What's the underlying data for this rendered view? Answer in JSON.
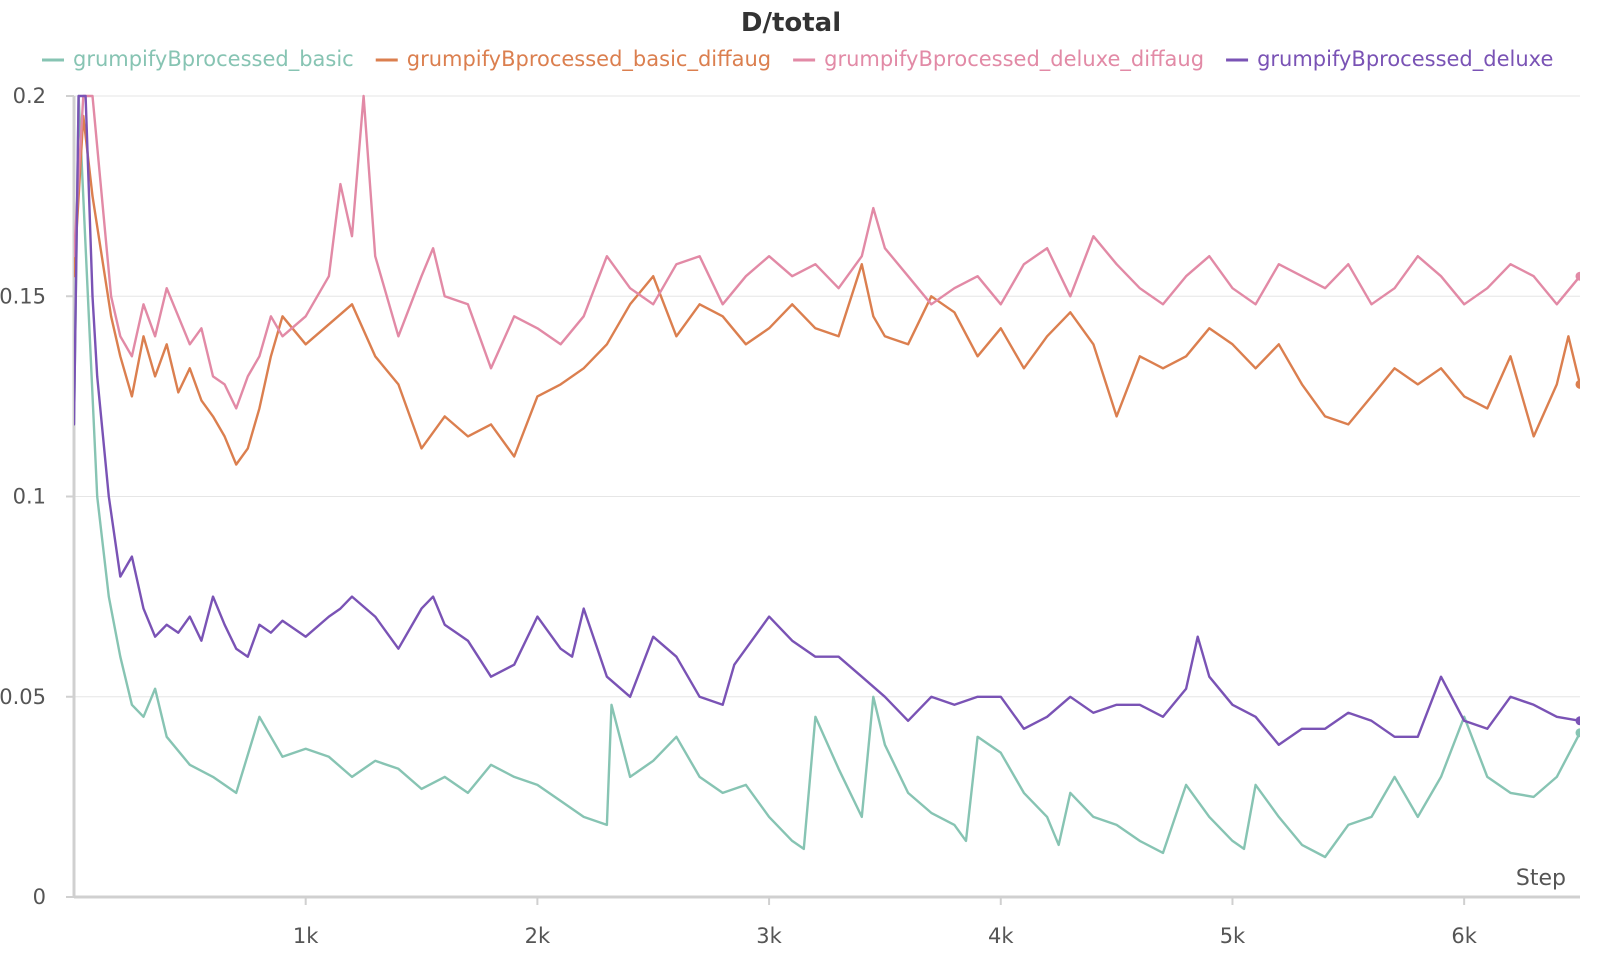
{
  "chart_data": {
    "type": "line",
    "title": "D/total",
    "xlabel": "Step",
    "ylabel": "",
    "xlim": [
      0,
      6500
    ],
    "ylim": [
      0,
      0.2
    ],
    "x_ticks": [
      {
        "value": 1000,
        "label": "1k"
      },
      {
        "value": 2000,
        "label": "2k"
      },
      {
        "value": 3000,
        "label": "3k"
      },
      {
        "value": 4000,
        "label": "4k"
      },
      {
        "value": 5000,
        "label": "5k"
      },
      {
        "value": 6000,
        "label": "6k"
      }
    ],
    "y_ticks": [
      {
        "value": 0,
        "label": "0"
      },
      {
        "value": 0.05,
        "label": "0.05"
      },
      {
        "value": 0.1,
        "label": "0.1"
      },
      {
        "value": 0.15,
        "label": "0.15"
      },
      {
        "value": 0.2,
        "label": "0.2"
      }
    ],
    "grid": true,
    "legend_position": "top",
    "series": [
      {
        "name": "grumpifyBprocessed_basic",
        "color": "#87c4b3",
        "x": [
          0,
          20,
          60,
          100,
          150,
          200,
          250,
          300,
          350,
          400,
          500,
          600,
          700,
          800,
          900,
          1000,
          1100,
          1200,
          1300,
          1400,
          1500,
          1600,
          1700,
          1800,
          1900,
          2000,
          2100,
          2200,
          2300,
          2320,
          2400,
          2500,
          2600,
          2700,
          2800,
          2900,
          3000,
          3100,
          3150,
          3200,
          3300,
          3400,
          3450,
          3500,
          3600,
          3700,
          3800,
          3850,
          3900,
          4000,
          4100,
          4200,
          4250,
          4300,
          4400,
          4500,
          4600,
          4700,
          4800,
          4900,
          5000,
          5050,
          5100,
          5200,
          5300,
          5400,
          5500,
          5600,
          5700,
          5800,
          5900,
          6000,
          6100,
          6200,
          6300,
          6400,
          6500
        ],
        "y": [
          0.118,
          0.2,
          0.15,
          0.1,
          0.075,
          0.06,
          0.048,
          0.045,
          0.052,
          0.04,
          0.033,
          0.03,
          0.026,
          0.045,
          0.035,
          0.037,
          0.035,
          0.03,
          0.034,
          0.032,
          0.027,
          0.03,
          0.026,
          0.033,
          0.03,
          0.028,
          0.024,
          0.02,
          0.018,
          0.048,
          0.03,
          0.034,
          0.04,
          0.03,
          0.026,
          0.028,
          0.02,
          0.014,
          0.012,
          0.045,
          0.032,
          0.02,
          0.05,
          0.038,
          0.026,
          0.021,
          0.018,
          0.014,
          0.04,
          0.036,
          0.026,
          0.02,
          0.013,
          0.026,
          0.02,
          0.018,
          0.014,
          0.011,
          0.028,
          0.02,
          0.014,
          0.012,
          0.028,
          0.02,
          0.013,
          0.01,
          0.018,
          0.02,
          0.03,
          0.02,
          0.03,
          0.045,
          0.03,
          0.026,
          0.025,
          0.03,
          0.041
        ]
      },
      {
        "name": "grumpifyBprocessed_basic_diffaug",
        "color": "#db7f4f",
        "x": [
          0,
          40,
          80,
          120,
          160,
          200,
          250,
          300,
          350,
          400,
          450,
          500,
          550,
          600,
          650,
          700,
          750,
          800,
          850,
          900,
          1000,
          1100,
          1200,
          1300,
          1400,
          1500,
          1600,
          1700,
          1800,
          1900,
          2000,
          2100,
          2200,
          2300,
          2400,
          2500,
          2600,
          2700,
          2800,
          2900,
          3000,
          3100,
          3200,
          3300,
          3400,
          3450,
          3500,
          3600,
          3700,
          3800,
          3900,
          4000,
          4100,
          4200,
          4300,
          4400,
          4500,
          4600,
          4700,
          4800,
          4900,
          5000,
          5100,
          5200,
          5300,
          5400,
          5500,
          5600,
          5700,
          5800,
          5900,
          6000,
          6100,
          6200,
          6300,
          6400,
          6450,
          6500
        ],
        "y": [
          0.155,
          0.195,
          0.175,
          0.16,
          0.145,
          0.135,
          0.125,
          0.14,
          0.13,
          0.138,
          0.126,
          0.132,
          0.124,
          0.12,
          0.115,
          0.108,
          0.112,
          0.122,
          0.135,
          0.145,
          0.138,
          0.143,
          0.148,
          0.135,
          0.128,
          0.112,
          0.12,
          0.115,
          0.118,
          0.11,
          0.125,
          0.128,
          0.132,
          0.138,
          0.148,
          0.155,
          0.14,
          0.148,
          0.145,
          0.138,
          0.142,
          0.148,
          0.142,
          0.14,
          0.158,
          0.145,
          0.14,
          0.138,
          0.15,
          0.146,
          0.135,
          0.142,
          0.132,
          0.14,
          0.146,
          0.138,
          0.12,
          0.135,
          0.132,
          0.135,
          0.142,
          0.138,
          0.132,
          0.138,
          0.128,
          0.12,
          0.118,
          0.125,
          0.132,
          0.128,
          0.132,
          0.125,
          0.122,
          0.135,
          0.115,
          0.128,
          0.14,
          0.128
        ]
      },
      {
        "name": "grumpifyBprocessed_deluxe_diffaug",
        "color": "#e28aa6",
        "x": [
          0,
          40,
          80,
          120,
          160,
          200,
          250,
          300,
          350,
          400,
          450,
          500,
          550,
          600,
          650,
          700,
          750,
          800,
          850,
          900,
          1000,
          1100,
          1150,
          1200,
          1250,
          1300,
          1400,
          1500,
          1550,
          1600,
          1700,
          1800,
          1900,
          2000,
          2100,
          2200,
          2300,
          2400,
          2500,
          2600,
          2700,
          2800,
          2900,
          3000,
          3100,
          3200,
          3300,
          3400,
          3450,
          3500,
          3600,
          3700,
          3800,
          3900,
          4000,
          4100,
          4200,
          4300,
          4400,
          4500,
          4600,
          4700,
          4800,
          4900,
          5000,
          5100,
          5200,
          5300,
          5400,
          5500,
          5600,
          5700,
          5800,
          5900,
          6000,
          6100,
          6200,
          6300,
          6400,
          6500
        ],
        "y": [
          0.16,
          0.2,
          0.2,
          0.175,
          0.15,
          0.14,
          0.135,
          0.148,
          0.14,
          0.152,
          0.145,
          0.138,
          0.142,
          0.13,
          0.128,
          0.122,
          0.13,
          0.135,
          0.145,
          0.14,
          0.145,
          0.155,
          0.178,
          0.165,
          0.2,
          0.16,
          0.14,
          0.155,
          0.162,
          0.15,
          0.148,
          0.132,
          0.145,
          0.142,
          0.138,
          0.145,
          0.16,
          0.152,
          0.148,
          0.158,
          0.16,
          0.148,
          0.155,
          0.16,
          0.155,
          0.158,
          0.152,
          0.16,
          0.172,
          0.162,
          0.155,
          0.148,
          0.152,
          0.155,
          0.148,
          0.158,
          0.162,
          0.15,
          0.165,
          0.158,
          0.152,
          0.148,
          0.155,
          0.16,
          0.152,
          0.148,
          0.158,
          0.155,
          0.152,
          0.158,
          0.148,
          0.152,
          0.16,
          0.155,
          0.148,
          0.152,
          0.158,
          0.155,
          0.148,
          0.155
        ]
      },
      {
        "name": "grumpifyBprocessed_deluxe",
        "color": "#7a53b5",
        "x": [
          0,
          20,
          50,
          80,
          100,
          150,
          200,
          250,
          300,
          350,
          400,
          450,
          500,
          550,
          600,
          650,
          700,
          750,
          800,
          850,
          900,
          1000,
          1100,
          1150,
          1200,
          1300,
          1400,
          1500,
          1550,
          1600,
          1700,
          1800,
          1900,
          2000,
          2100,
          2150,
          2200,
          2300,
          2400,
          2500,
          2600,
          2700,
          2800,
          2850,
          2900,
          3000,
          3100,
          3200,
          3300,
          3400,
          3500,
          3600,
          3700,
          3800,
          3900,
          4000,
          4100,
          4200,
          4300,
          4400,
          4500,
          4600,
          4700,
          4800,
          4850,
          4900,
          5000,
          5100,
          5200,
          5300,
          5400,
          5500,
          5600,
          5700,
          5800,
          5900,
          6000,
          6100,
          6200,
          6300,
          6400,
          6500
        ],
        "y": [
          0.118,
          0.2,
          0.2,
          0.15,
          0.13,
          0.1,
          0.08,
          0.085,
          0.072,
          0.065,
          0.068,
          0.066,
          0.07,
          0.064,
          0.075,
          0.068,
          0.062,
          0.06,
          0.068,
          0.066,
          0.069,
          0.065,
          0.07,
          0.072,
          0.075,
          0.07,
          0.062,
          0.072,
          0.075,
          0.068,
          0.064,
          0.055,
          0.058,
          0.07,
          0.062,
          0.06,
          0.072,
          0.055,
          0.05,
          0.065,
          0.06,
          0.05,
          0.048,
          0.058,
          0.062,
          0.07,
          0.064,
          0.06,
          0.06,
          0.055,
          0.05,
          0.044,
          0.05,
          0.048,
          0.05,
          0.05,
          0.042,
          0.045,
          0.05,
          0.046,
          0.048,
          0.048,
          0.045,
          0.052,
          0.065,
          0.055,
          0.048,
          0.045,
          0.038,
          0.042,
          0.042,
          0.046,
          0.044,
          0.04,
          0.04,
          0.055,
          0.044,
          0.042,
          0.05,
          0.048,
          0.045,
          0.044
        ]
      }
    ]
  }
}
